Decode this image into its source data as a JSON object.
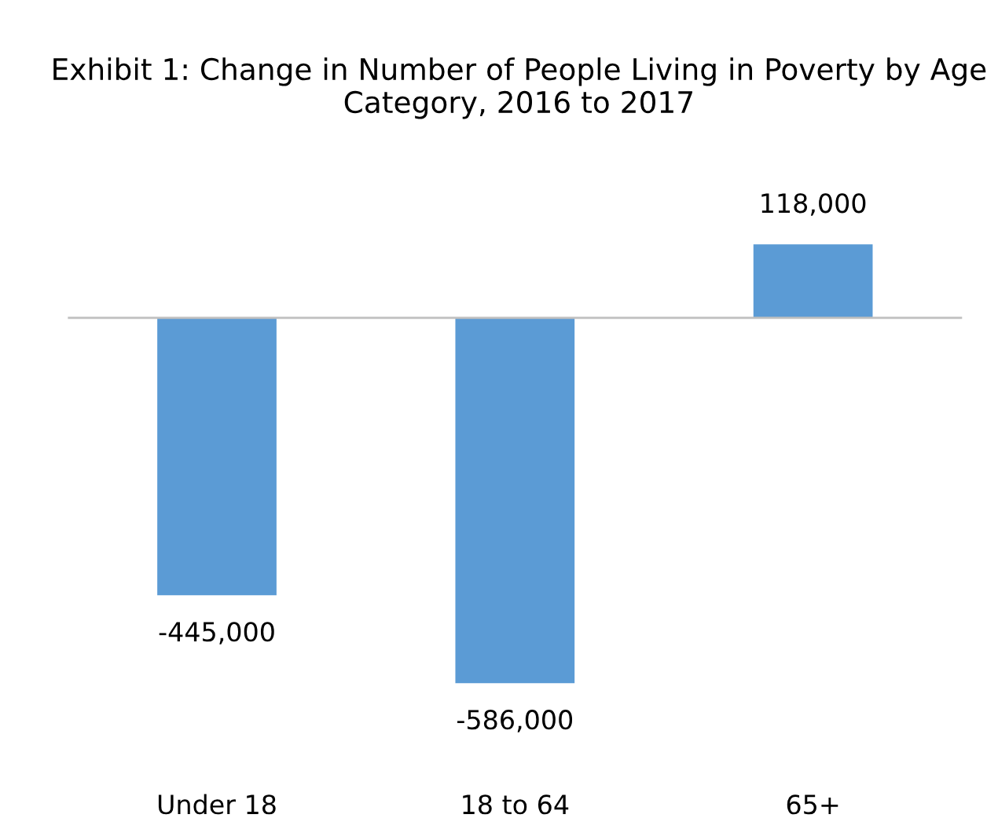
{
  "chart_data": {
    "type": "bar",
    "title": "Exhibit 1: Change in Number of People Living in Poverty by Age Category, 2016 to 2017",
    "categories": [
      "Under 18",
      "18 to 64",
      "65+"
    ],
    "values": [
      -445000,
      -586000,
      118000
    ],
    "color": "#5b9bd5",
    "value_labels": [
      "-445,000",
      "-586,000",
      "118,000"
    ],
    "grid": false,
    "legend": false
  }
}
